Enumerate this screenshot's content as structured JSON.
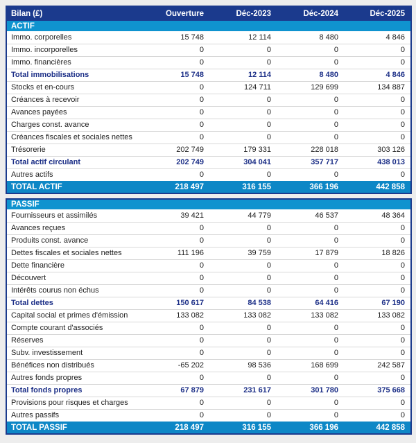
{
  "colors": {
    "header_navy": "#1b3a8d",
    "section_blue": "#0f93cf",
    "total_blue": "#0d87c6",
    "subtotal_text_navy": "#1c2f87",
    "row_separator": "#d8d8d8",
    "page_background": "#ededed"
  },
  "chart_data": {
    "type": "table",
    "title": "Bilan (£)",
    "columns": [
      "Ouverture",
      "Déc-2023",
      "Déc-2024",
      "Déc-2025"
    ],
    "sections": [
      {
        "name": "ACTIF",
        "rows": [
          {
            "label": "Immo. corporelles",
            "values": [
              15748,
              12114,
              8480,
              4846
            ],
            "style": "normal"
          },
          {
            "label": "Immo. incorporelles",
            "values": [
              0,
              0,
              0,
              0
            ],
            "style": "normal"
          },
          {
            "label": "Immo. financières",
            "values": [
              0,
              0,
              0,
              0
            ],
            "style": "normal"
          },
          {
            "label": "Total immobilisations",
            "values": [
              15748,
              12114,
              8480,
              4846
            ],
            "style": "subtotal"
          },
          {
            "label": "Stocks et en-cours",
            "values": [
              0,
              124711,
              129699,
              134887
            ],
            "style": "normal"
          },
          {
            "label": "Créances à recevoir",
            "values": [
              0,
              0,
              0,
              0
            ],
            "style": "normal"
          },
          {
            "label": "Avances payées",
            "values": [
              0,
              0,
              0,
              0
            ],
            "style": "normal"
          },
          {
            "label": "Charges const. avance",
            "values": [
              0,
              0,
              0,
              0
            ],
            "style": "normal"
          },
          {
            "label": "Créances fiscales et sociales nettes",
            "values": [
              0,
              0,
              0,
              0
            ],
            "style": "normal"
          },
          {
            "label": "Trésorerie",
            "values": [
              202749,
              179331,
              228018,
              303126
            ],
            "style": "normal"
          },
          {
            "label": "Total actif circulant",
            "values": [
              202749,
              304041,
              357717,
              438013
            ],
            "style": "subtotal"
          },
          {
            "label": "Autres actifs",
            "values": [
              0,
              0,
              0,
              0
            ],
            "style": "normal"
          }
        ],
        "total": {
          "label": "TOTAL ACTIF",
          "values": [
            218497,
            316155,
            366196,
            442858
          ]
        }
      },
      {
        "name": "PASSIF",
        "rows": [
          {
            "label": "Fournisseurs et assimilés",
            "values": [
              39421,
              44779,
              46537,
              48364
            ],
            "style": "normal"
          },
          {
            "label": "Avances reçues",
            "values": [
              0,
              0,
              0,
              0
            ],
            "style": "normal"
          },
          {
            "label": "Produits const. avance",
            "values": [
              0,
              0,
              0,
              0
            ],
            "style": "normal"
          },
          {
            "label": "Dettes fiscales et sociales nettes",
            "values": [
              111196,
              39759,
              17879,
              18826
            ],
            "style": "normal"
          },
          {
            "label": "Dette financière",
            "values": [
              0,
              0,
              0,
              0
            ],
            "style": "normal"
          },
          {
            "label": "Découvert",
            "values": [
              0,
              0,
              0,
              0
            ],
            "style": "normal"
          },
          {
            "label": "Intérêts courus non échus",
            "values": [
              0,
              0,
              0,
              0
            ],
            "style": "normal"
          },
          {
            "label": "Total dettes",
            "values": [
              150617,
              84538,
              64416,
              67190
            ],
            "style": "subtotal"
          },
          {
            "label": "Capital social et primes d'émission",
            "values": [
              133082,
              133082,
              133082,
              133082
            ],
            "style": "normal"
          },
          {
            "label": "Compte courant d'associés",
            "values": [
              0,
              0,
              0,
              0
            ],
            "style": "normal"
          },
          {
            "label": "Réserves",
            "values": [
              0,
              0,
              0,
              0
            ],
            "style": "normal"
          },
          {
            "label": "Subv. investissement",
            "values": [
              0,
              0,
              0,
              0
            ],
            "style": "normal"
          },
          {
            "label": "Bénéfices non distribués",
            "values": [
              -65202,
              98536,
              168699,
              242587
            ],
            "style": "normal"
          },
          {
            "label": "Autres fonds propres",
            "values": [
              0,
              0,
              0,
              0
            ],
            "style": "normal"
          },
          {
            "label": "Total fonds propres",
            "values": [
              67879,
              231617,
              301780,
              375668
            ],
            "style": "subtotal"
          },
          {
            "label": "Provisions pour risques et charges",
            "values": [
              0,
              0,
              0,
              0
            ],
            "style": "normal"
          },
          {
            "label": "Autres passifs",
            "values": [
              0,
              0,
              0,
              0
            ],
            "style": "normal"
          }
        ],
        "total": {
          "label": "TOTAL PASSIF",
          "values": [
            218497,
            316155,
            366196,
            442858
          ]
        }
      }
    ]
  }
}
